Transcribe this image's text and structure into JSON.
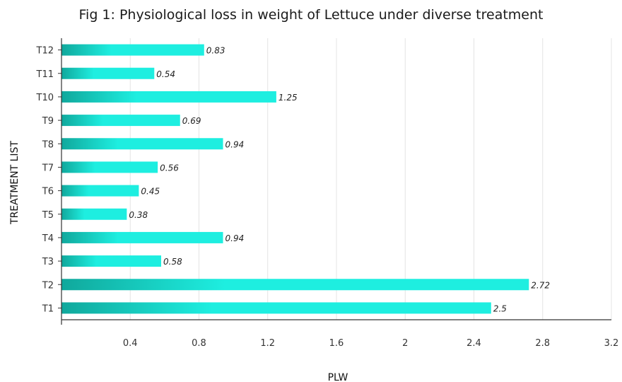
{
  "chart_data": {
    "type": "bar",
    "orientation": "horizontal",
    "title": "Fig 1: Physiological loss in weight of Lettuce under diverse treatment",
    "xlabel": "PLW",
    "ylabel": "TREATMENT LIST",
    "categories": [
      "T1",
      "T2",
      "T3",
      "T4",
      "T5",
      "T6",
      "T7",
      "T8",
      "T9",
      "T10",
      "T11",
      "T12"
    ],
    "values": [
      2.5,
      2.72,
      0.58,
      0.94,
      0.38,
      0.45,
      0.56,
      0.94,
      0.69,
      1.25,
      0.54,
      0.83
    ],
    "value_labels": [
      "2.5",
      "2.72",
      "0.58",
      "0.94",
      "0.38",
      "0.45",
      "0.56",
      "0.94",
      "0.69",
      "1.25",
      "0.54",
      "0.83"
    ],
    "xlim": [
      0,
      3.2
    ],
    "xticks": [
      "0.4",
      "0.8",
      "1.2",
      "1.6",
      "2",
      "2.4",
      "2.8",
      "3.2"
    ],
    "xtick_values": [
      0.4,
      0.8,
      1.2,
      1.6,
      2.0,
      2.4,
      2.8,
      3.2
    ],
    "grid": "vertical",
    "bar_color_start": "#10a89c",
    "bar_color_end": "#1eeee0",
    "grid_color": "#e4e4e4",
    "axis_color": "#333333"
  }
}
